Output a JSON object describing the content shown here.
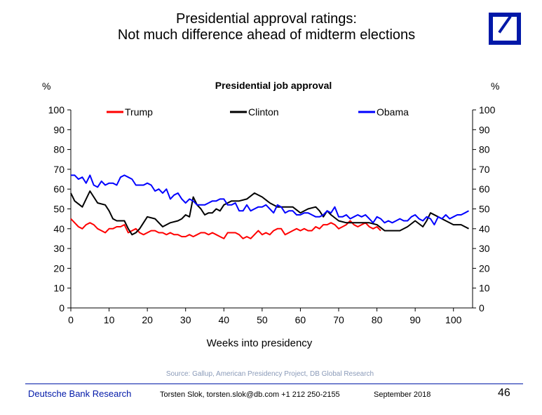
{
  "slide": {
    "title_line1": "Presidential approval ratings:",
    "title_line2": "Not much difference ahead of midterm elections",
    "source": "Source: Gallup, American Presidency Project, DB Global Research",
    "footer_brand": "Deutsche Bank Research",
    "footer_contact": "Torsten Slok, torsten.slok@db.com  +1 212 250-2155",
    "footer_date": "September 2018",
    "page_number": "46",
    "brand_color": "#0018a8"
  },
  "chart_data": {
    "type": "line",
    "title": "Presidential job approval",
    "xlabel": "Weeks into presidency",
    "ylabel_left": "%",
    "ylabel_right": "%",
    "xlim": [
      0,
      105
    ],
    "ylim": [
      0,
      100
    ],
    "xticks": [
      0,
      10,
      20,
      30,
      40,
      50,
      60,
      70,
      80,
      90,
      100
    ],
    "yticks": [
      0,
      10,
      20,
      30,
      40,
      50,
      60,
      70,
      80,
      90,
      100
    ],
    "grid": false,
    "legend_position": "top",
    "series": [
      {
        "name": "Trump",
        "color": "#ff0000",
        "x": [
          0,
          1,
          2,
          3,
          4,
          5,
          6,
          7,
          8,
          9,
          10,
          11,
          12,
          13,
          14,
          15,
          16,
          17,
          18,
          19,
          20,
          21,
          22,
          23,
          24,
          25,
          26,
          27,
          28,
          29,
          30,
          31,
          32,
          33,
          34,
          35,
          36,
          37,
          38,
          39,
          40,
          41,
          42,
          43,
          44,
          45,
          46,
          47,
          48,
          49,
          50,
          51,
          52,
          53,
          54,
          55,
          56,
          57,
          58,
          59,
          60,
          61,
          62,
          63,
          64,
          65,
          66,
          67,
          68,
          69,
          70,
          71,
          72,
          73,
          74,
          75,
          76,
          77,
          78,
          79,
          80,
          81
        ],
        "y": [
          45,
          43,
          41,
          40,
          42,
          43,
          42,
          40,
          39,
          38,
          40,
          40,
          41,
          41,
          42,
          38,
          39,
          40,
          38,
          37,
          38,
          39,
          39,
          38,
          38,
          37,
          38,
          37,
          37,
          36,
          36,
          37,
          36,
          37,
          38,
          38,
          37,
          38,
          37,
          36,
          35,
          38,
          38,
          38,
          37,
          35,
          36,
          35,
          37,
          39,
          37,
          38,
          37,
          39,
          40,
          40,
          37,
          38,
          39,
          40,
          39,
          40,
          39,
          39,
          41,
          40,
          42,
          42,
          43,
          42,
          40,
          41,
          42,
          44,
          42,
          41,
          42,
          43,
          41,
          40,
          41,
          39
        ]
      },
      {
        "name": "Clinton",
        "color": "#000000",
        "x": [
          0,
          1,
          3,
          5,
          7,
          9,
          10,
          11,
          12,
          14,
          15,
          16,
          17,
          18,
          20,
          22,
          24,
          26,
          28,
          29,
          30,
          31,
          32,
          33,
          34,
          35,
          36,
          37,
          38,
          39,
          40,
          41,
          42,
          43,
          44,
          46,
          48,
          50,
          52,
          54,
          56,
          58,
          60,
          62,
          64,
          65,
          66,
          67,
          68,
          70,
          72,
          74,
          76,
          78,
          80,
          82,
          84,
          86,
          88,
          90,
          92,
          93,
          94,
          96,
          98,
          100,
          102,
          104
        ],
        "y": [
          58,
          54,
          51,
          59,
          53,
          52,
          49,
          45,
          44,
          44,
          40,
          37,
          38,
          40,
          46,
          45,
          41,
          43,
          44,
          45,
          47,
          46,
          56,
          52,
          50,
          47,
          48,
          48,
          50,
          49,
          52,
          53,
          54,
          54,
          54,
          55,
          58,
          56,
          53,
          51,
          51,
          51,
          48,
          50,
          51,
          49,
          46,
          49,
          47,
          44,
          43,
          43,
          43,
          43,
          42,
          39,
          39,
          39,
          41,
          44,
          41,
          44,
          48,
          46,
          44,
          42,
          42,
          40
        ]
      },
      {
        "name": "Obama",
        "color": "#0000ff",
        "x": [
          0,
          1,
          2,
          3,
          4,
          5,
          6,
          7,
          8,
          9,
          10,
          11,
          12,
          13,
          14,
          15,
          16,
          17,
          18,
          19,
          20,
          21,
          22,
          23,
          24,
          25,
          26,
          27,
          28,
          29,
          30,
          31,
          32,
          33,
          34,
          35,
          36,
          37,
          38,
          39,
          40,
          41,
          42,
          43,
          44,
          45,
          46,
          47,
          48,
          49,
          50,
          51,
          52,
          53,
          54,
          55,
          56,
          57,
          58,
          59,
          60,
          61,
          62,
          63,
          64,
          65,
          66,
          67,
          68,
          69,
          70,
          71,
          72,
          73,
          74,
          75,
          76,
          77,
          78,
          79,
          80,
          81,
          82,
          83,
          84,
          85,
          86,
          87,
          88,
          89,
          90,
          91,
          92,
          93,
          94,
          95,
          96,
          97,
          98,
          99,
          100,
          101,
          102,
          103,
          104
        ],
        "y": [
          67,
          67,
          65,
          66,
          63,
          67,
          62,
          61,
          64,
          62,
          63,
          63,
          62,
          66,
          67,
          66,
          65,
          62,
          62,
          62,
          63,
          62,
          59,
          60,
          58,
          60,
          55,
          57,
          58,
          55,
          53,
          55,
          54,
          52,
          52,
          52,
          53,
          54,
          54,
          55,
          55,
          52,
          52,
          53,
          49,
          49,
          52,
          49,
          50,
          51,
          51,
          52,
          50,
          48,
          52,
          51,
          48,
          49,
          49,
          47,
          47,
          48,
          48,
          47,
          46,
          46,
          47,
          49,
          48,
          51,
          46,
          46,
          47,
          45,
          46,
          47,
          46,
          47,
          45,
          43,
          46,
          45,
          43,
          44,
          43,
          44,
          45,
          44,
          44,
          46,
          47,
          45,
          44,
          46,
          45,
          42,
          46,
          45,
          47,
          45,
          46,
          47,
          47,
          48,
          49
        ]
      }
    ]
  }
}
